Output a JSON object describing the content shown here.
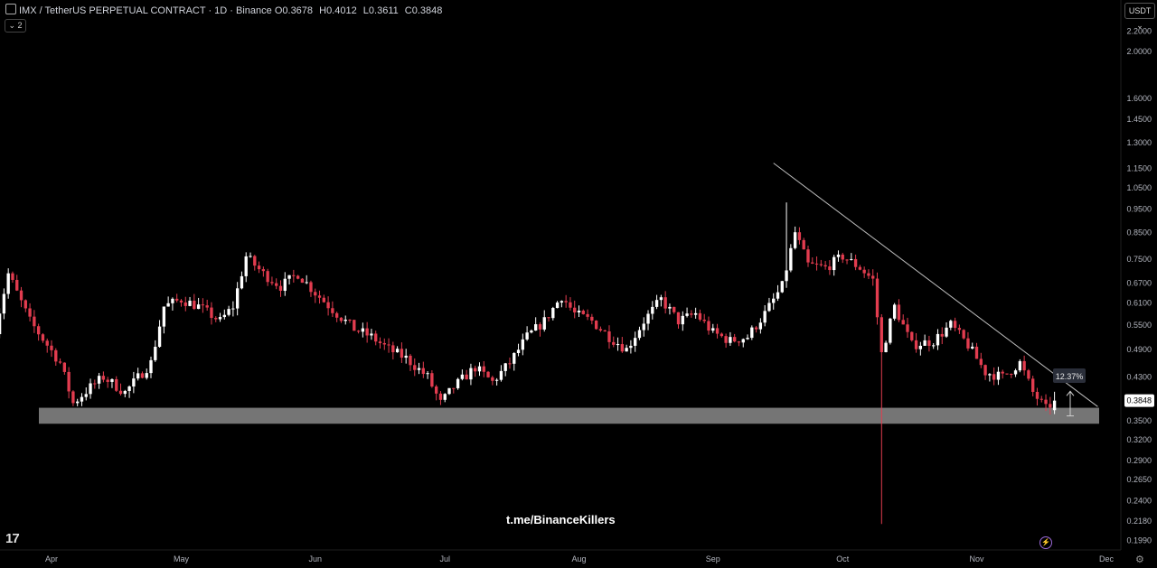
{
  "header": {
    "symbol": "IMX / TetherUS PERPETUAL CONTRACT · 1D · Binance",
    "o_label": "O",
    "o_value": "0.3678",
    "h_label": "H",
    "h_value": "0.4012",
    "l_label": "L",
    "l_value": "0.3611",
    "c_label": "C",
    "c_value": "0.3848",
    "collapse_label": "2",
    "currency": "USDT"
  },
  "watermark": "t.me/BinanceKillers",
  "logo": "17",
  "icons": {
    "bolt": "lightning-icon",
    "settings": "gear-icon"
  },
  "colors": {
    "up": "#ffffff",
    "down": "#e23c4f",
    "zone": "#8a8a8a",
    "trendline": "#bdbdbd",
    "measure_bg": "#2a2e39"
  },
  "chart_data": {
    "type": "candlestick",
    "y_scale": "log",
    "y_ticks": [
      "2.2000",
      "2.0000",
      "1.6000",
      "1.4500",
      "1.3000",
      "1.1500",
      "1.0500",
      "0.9500",
      "0.8500",
      "0.7500",
      "0.6700",
      "0.6100",
      "0.5500",
      "0.4900",
      "0.4300",
      "0.3500",
      "0.3200",
      "0.2900",
      "0.2650",
      "0.2400",
      "0.2180",
      "0.1990"
    ],
    "x_ticks": [
      "Apr",
      "May",
      "Jun",
      "Jul",
      "Aug",
      "Sep",
      "Oct",
      "Nov",
      "Dec"
    ],
    "last_price": "0.3848",
    "measure_label": "12.37%",
    "support_zone": [
      0.345,
      0.372
    ],
    "trendline": {
      "from": [
        "Sep 15",
        1.18
      ],
      "to": [
        "Nov 29",
        0.374
      ]
    },
    "measure": {
      "from": 0.358,
      "to": 0.402
    },
    "anchors": [
      [
        "Mar 19",
        0.54
      ],
      [
        "Mar 22",
        0.7
      ],
      [
        "Mar 27",
        0.56
      ],
      [
        "Apr 3",
        0.46
      ],
      [
        "Apr 6",
        0.38
      ],
      [
        "Apr 10",
        0.41
      ],
      [
        "Apr 13",
        0.43
      ],
      [
        "Apr 18",
        0.4
      ],
      [
        "Apr 24",
        0.46
      ],
      [
        "Apr 27",
        0.6
      ],
      [
        "May 1",
        0.62
      ],
      [
        "May 5",
        0.6
      ],
      [
        "May 10",
        0.56
      ],
      [
        "May 13",
        0.6
      ],
      [
        "May 16",
        0.76
      ],
      [
        "May 20",
        0.7
      ],
      [
        "May 24",
        0.66
      ],
      [
        "May 28",
        0.7
      ],
      [
        "Jun 1",
        0.64
      ],
      [
        "Jun 6",
        0.58
      ],
      [
        "Jun 10",
        0.54
      ],
      [
        "Jun 14",
        0.52
      ],
      [
        "Jun 18",
        0.49
      ],
      [
        "Jun 22",
        0.47
      ],
      [
        "Jun 27",
        0.43
      ],
      [
        "Jun 30",
        0.38
      ],
      [
        "Jul 3",
        0.41
      ],
      [
        "Jul 8",
        0.45
      ],
      [
        "Jul 12",
        0.42
      ],
      [
        "Jul 16",
        0.46
      ],
      [
        "Jul 20",
        0.52
      ],
      [
        "Jul 24",
        0.56
      ],
      [
        "Jul 28",
        0.63
      ],
      [
        "Jul 31",
        0.58
      ],
      [
        "Aug 4",
        0.56
      ],
      [
        "Aug 8",
        0.52
      ],
      [
        "Aug 12",
        0.49
      ],
      [
        "Aug 16",
        0.56
      ],
      [
        "Aug 20",
        0.62
      ],
      [
        "Aug 24",
        0.56
      ],
      [
        "Aug 28",
        0.58
      ],
      [
        "Sep 1",
        0.53
      ],
      [
        "Sep 5",
        0.51
      ],
      [
        "Sep 9",
        0.52
      ],
      [
        "Sep 13",
        0.58
      ],
      [
        "Sep 17",
        0.66
      ],
      [
        "Sep 20",
        0.85
      ],
      [
        "Sep 23",
        0.73
      ],
      [
        "Sep 27",
        0.72
      ],
      [
        "Oct 1",
        0.76
      ],
      [
        "Oct 5",
        0.72
      ],
      [
        "Oct 8",
        0.68
      ],
      [
        "Oct 10",
        0.48
      ],
      [
        "Oct 13",
        0.6
      ],
      [
        "Oct 17",
        0.5
      ],
      [
        "Oct 22",
        0.51
      ],
      [
        "Oct 26",
        0.55
      ],
      [
        "Oct 30",
        0.5
      ],
      [
        "Nov 3",
        0.44
      ],
      [
        "Nov 7",
        0.43
      ],
      [
        "Nov 11",
        0.46
      ],
      [
        "Nov 14",
        0.4
      ],
      [
        "Nov 17",
        0.37
      ],
      [
        "Nov 19",
        0.3848
      ]
    ]
  }
}
